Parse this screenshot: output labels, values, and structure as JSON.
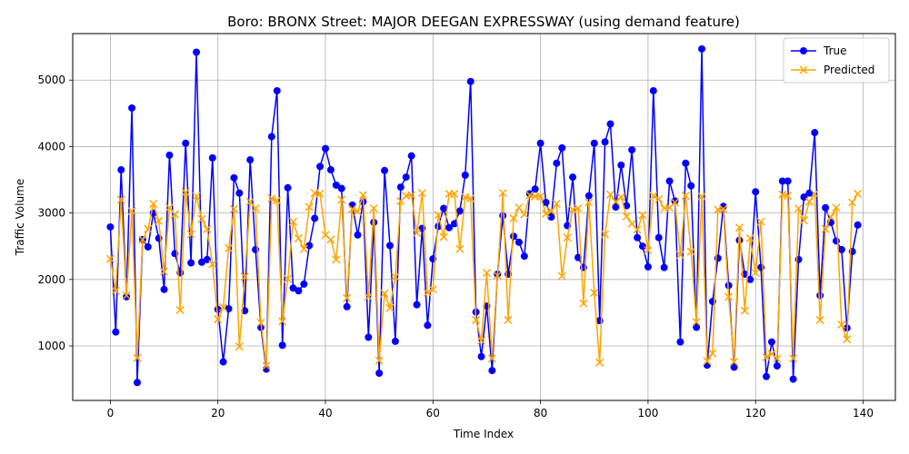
{
  "chart_data": {
    "type": "line",
    "title": "Boro: BRONX Street: MAJOR DEEGAN EXPRESSWAY (using demand feature)",
    "xlabel": "Time Index",
    "ylabel": "Traffic Volume",
    "xlim": [
      -7,
      146
    ],
    "ylim": [
      180,
      5700
    ],
    "xticks": [
      0,
      20,
      40,
      60,
      80,
      100,
      120,
      140
    ],
    "yticks": [
      1000,
      2000,
      3000,
      4000,
      5000
    ],
    "grid": true,
    "legend_position": "top-right",
    "series": [
      {
        "name": "True",
        "color": "#0000ff",
        "marker": "circle",
        "values": [
          2790,
          1210,
          3650,
          1740,
          4580,
          450,
          2600,
          2490,
          3000,
          2620,
          1850,
          3870,
          2390,
          2100,
          4050,
          2250,
          5420,
          2260,
          2300,
          3830,
          1550,
          760,
          1560,
          3530,
          3300,
          1530,
          3800,
          2450,
          1280,
          650,
          4150,
          4840,
          1010,
          3380,
          1870,
          1830,
          1930,
          2510,
          2920,
          3700,
          3970,
          3650,
          3420,
          3370,
          1590,
          3120,
          2670,
          3170,
          1130,
          2860,
          590,
          3640,
          2510,
          1070,
          3390,
          3540,
          3860,
          1620,
          2770,
          1310,
          2310,
          2800,
          3070,
          2780,
          2840,
          3030,
          3570,
          4980,
          1510,
          840,
          1600,
          630,
          2080,
          2960,
          2080,
          2650,
          2560,
          2350,
          3290,
          3360,
          4050,
          3160,
          2940,
          3750,
          3980,
          2810,
          3540,
          2330,
          2180,
          3260,
          4050,
          1380,
          4070,
          4340,
          3090,
          3720,
          3110,
          3950,
          2630,
          2500,
          2190,
          4840,
          2630,
          2180,
          3480,
          3180,
          1060,
          3750,
          3410,
          1280,
          5470,
          710,
          1670,
          2320,
          3100,
          1910,
          680,
          2590,
          2080,
          2000,
          3320,
          2180,
          540,
          1060,
          700,
          3480,
          3480,
          500,
          2300,
          3240,
          3300,
          4210,
          1760,
          3080,
          2860,
          2580,
          2450,
          1270,
          2420,
          2820
        ]
      },
      {
        "name": "Predicted",
        "color": "#ffa500",
        "marker": "x",
        "values": [
          2310,
          1830,
          3200,
          1760,
          3030,
          820,
          2600,
          2760,
          3140,
          2880,
          2120,
          3080,
          2980,
          1540,
          3310,
          2680,
          3250,
          2910,
          2760,
          2230,
          1400,
          1580,
          2470,
          3060,
          990,
          2040,
          3170,
          3070,
          1350,
          700,
          3220,
          3190,
          1370,
          2010,
          2870,
          2620,
          2460,
          3090,
          3300,
          3290,
          2670,
          2600,
          2300,
          3200,
          1720,
          3060,
          3020,
          3270,
          1740,
          3070,
          780,
          1790,
          1570,
          2040,
          3180,
          3260,
          3270,
          2700,
          3300,
          1800,
          1850,
          2970,
          2640,
          3290,
          3290,
          2460,
          3240,
          3220,
          1390,
          1080,
          2100,
          810,
          2060,
          3300,
          1390,
          2920,
          3080,
          2980,
          3270,
          3250,
          3250,
          2990,
          3030,
          3140,
          2050,
          2630,
          3050,
          3070,
          1640,
          3160,
          1800,
          750,
          2680,
          3280,
          3170,
          3240,
          2950,
          2840,
          2750,
          2970,
          2440,
          3260,
          3210,
          3070,
          3080,
          3160,
          2370,
          3260,
          2420,
          1360,
          3250,
          770,
          890,
          3050,
          3060,
          1740,
          760,
          2780,
          1530,
          2620,
          2100,
          2870,
          830,
          880,
          810,
          3280,
          3260,
          810,
          3070,
          2890,
          3170,
          3290,
          1390,
          2760,
          2940,
          3080,
          1320,
          1100,
          3160,
          3290
        ]
      }
    ]
  }
}
